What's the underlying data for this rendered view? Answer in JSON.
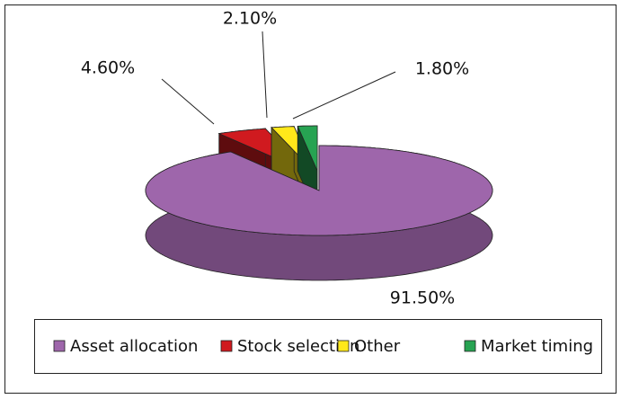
{
  "chart_data": {
    "type": "pie3d",
    "categories": [
      "Asset allocation",
      "Stock selection",
      "Other",
      "Market timing"
    ],
    "values": [
      91.5,
      4.6,
      2.1,
      1.8
    ],
    "value_labels": [
      "91.50%",
      "4.60%",
      "2.10%",
      "1.80%"
    ],
    "colors": [
      "#9e66ab",
      "#d01a1f",
      "#ffe81a",
      "#27a352"
    ],
    "legend": "bottom"
  }
}
